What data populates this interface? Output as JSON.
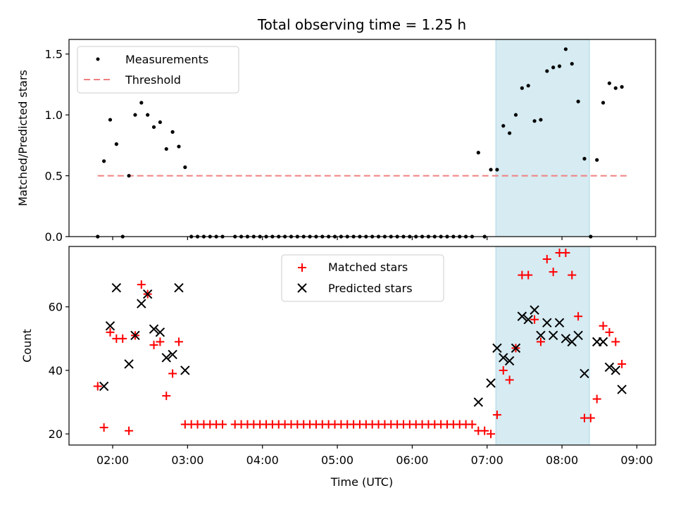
{
  "chart_data": [
    {
      "type": "scatter",
      "title": "Total observing time = 1.25 h",
      "ylabel": "Matched/Predicted stars",
      "xlabel": "",
      "xlim": [
        "01:25",
        "09:15"
      ],
      "ylim": [
        0,
        1.62
      ],
      "yticks": [
        "0.0",
        "0.5",
        "1.0",
        "1.5"
      ],
      "highlight_span": [
        "07:07",
        "08:22"
      ],
      "highlight_color": "#add8e6",
      "threshold": {
        "name": "Threshold",
        "value": 0.5,
        "x": [
          "01:48",
          "08:53"
        ],
        "color": "#f08080"
      },
      "legend": {
        "placement": "upper-left",
        "entries": [
          "Measurements",
          "Threshold"
        ]
      },
      "series": [
        {
          "name": "Measurements",
          "color": "#000000",
          "points": [
            [
              "01:48",
              0.0
            ],
            [
              "01:53",
              0.62
            ],
            [
              "01:58",
              0.96
            ],
            [
              "02:03",
              0.76
            ],
            [
              "02:08",
              0.0
            ],
            [
              "02:13",
              0.5
            ],
            [
              "02:18",
              1.0
            ],
            [
              "02:23",
              1.1
            ],
            [
              "02:28",
              1.0
            ],
            [
              "02:33",
              0.9
            ],
            [
              "02:38",
              0.94
            ],
            [
              "02:43",
              0.72
            ],
            [
              "02:48",
              0.86
            ],
            [
              "02:53",
              0.74
            ],
            [
              "02:58",
              0.57
            ],
            [
              "03:03",
              0.0
            ],
            [
              "03:08",
              0.0
            ],
            [
              "03:13",
              0.0
            ],
            [
              "03:18",
              0.0
            ],
            [
              "03:23",
              0.0
            ],
            [
              "03:28",
              0.0
            ],
            [
              "03:38",
              0.0
            ],
            [
              "03:43",
              0.0
            ],
            [
              "03:48",
              0.0
            ],
            [
              "03:53",
              0.0
            ],
            [
              "03:58",
              0.0
            ],
            [
              "04:03",
              0.0
            ],
            [
              "04:08",
              0.0
            ],
            [
              "04:13",
              0.0
            ],
            [
              "04:18",
              0.0
            ],
            [
              "04:23",
              0.0
            ],
            [
              "04:28",
              0.0
            ],
            [
              "04:33",
              0.0
            ],
            [
              "04:38",
              0.0
            ],
            [
              "04:43",
              0.0
            ],
            [
              "04:48",
              0.0
            ],
            [
              "04:53",
              0.0
            ],
            [
              "04:58",
              0.0
            ],
            [
              "05:03",
              0.0
            ],
            [
              "05:08",
              0.0
            ],
            [
              "05:13",
              0.0
            ],
            [
              "05:18",
              0.0
            ],
            [
              "05:23",
              0.0
            ],
            [
              "05:28",
              0.0
            ],
            [
              "05:33",
              0.0
            ],
            [
              "05:38",
              0.0
            ],
            [
              "05:43",
              0.0
            ],
            [
              "05:48",
              0.0
            ],
            [
              "05:53",
              0.0
            ],
            [
              "05:58",
              0.0
            ],
            [
              "06:03",
              0.0
            ],
            [
              "06:08",
              0.0
            ],
            [
              "06:13",
              0.0
            ],
            [
              "06:18",
              0.0
            ],
            [
              "06:23",
              0.0
            ],
            [
              "06:28",
              0.0
            ],
            [
              "06:33",
              0.0
            ],
            [
              "06:38",
              0.0
            ],
            [
              "06:43",
              0.0
            ],
            [
              "06:48",
              0.0
            ],
            [
              "06:53",
              0.69
            ],
            [
              "06:58",
              0.0
            ],
            [
              "07:03",
              0.55
            ],
            [
              "07:08",
              0.55
            ],
            [
              "07:13",
              0.91
            ],
            [
              "07:18",
              0.85
            ],
            [
              "07:23",
              1.0
            ],
            [
              "07:28",
              1.22
            ],
            [
              "07:33",
              1.24
            ],
            [
              "07:38",
              0.95
            ],
            [
              "07:43",
              0.96
            ],
            [
              "07:48",
              1.36
            ],
            [
              "07:53",
              1.39
            ],
            [
              "07:58",
              1.4
            ],
            [
              "08:03",
              1.54
            ],
            [
              "08:08",
              1.42
            ],
            [
              "08:13",
              1.11
            ],
            [
              "08:18",
              0.64
            ],
            [
              "08:23",
              0.0
            ],
            [
              "08:28",
              0.63
            ],
            [
              "08:33",
              1.1
            ],
            [
              "08:38",
              1.26
            ],
            [
              "08:43",
              1.22
            ],
            [
              "08:48",
              1.23
            ]
          ]
        }
      ]
    },
    {
      "type": "scatter",
      "title": "",
      "ylabel": "Count",
      "xlabel": "Time (UTC)",
      "xlim": [
        "01:25",
        "09:15"
      ],
      "ylim": [
        16.5,
        79
      ],
      "yticks": [
        "20",
        "40",
        "60"
      ],
      "xticks": [
        "02:00",
        "03:00",
        "04:00",
        "05:00",
        "06:00",
        "07:00",
        "08:00",
        "09:00"
      ],
      "highlight_span": [
        "07:07",
        "08:22"
      ],
      "highlight_color": "#add8e6",
      "legend": {
        "placement": "upper-center",
        "entries": [
          "Matched stars",
          "Predicted stars"
        ]
      },
      "series": [
        {
          "name": "Matched stars",
          "marker": "+",
          "color": "#ff0000",
          "points": [
            [
              "01:48",
              35
            ],
            [
              "01:53",
              22
            ],
            [
              "01:58",
              52
            ],
            [
              "02:03",
              50
            ],
            [
              "02:08",
              50
            ],
            [
              "02:13",
              21
            ],
            [
              "02:18",
              51
            ],
            [
              "02:23",
              67
            ],
            [
              "02:28",
              64
            ],
            [
              "02:33",
              48
            ],
            [
              "02:38",
              49
            ],
            [
              "02:43",
              32
            ],
            [
              "02:48",
              39
            ],
            [
              "02:53",
              49
            ],
            [
              "02:58",
              23
            ],
            [
              "03:03",
              23
            ],
            [
              "03:08",
              23
            ],
            [
              "03:13",
              23
            ],
            [
              "03:18",
              23
            ],
            [
              "03:23",
              23
            ],
            [
              "03:28",
              23
            ],
            [
              "03:38",
              23
            ],
            [
              "03:43",
              23
            ],
            [
              "03:48",
              23
            ],
            [
              "03:53",
              23
            ],
            [
              "03:58",
              23
            ],
            [
              "04:03",
              23
            ],
            [
              "04:08",
              23
            ],
            [
              "04:13",
              23
            ],
            [
              "04:18",
              23
            ],
            [
              "04:23",
              23
            ],
            [
              "04:28",
              23
            ],
            [
              "04:33",
              23
            ],
            [
              "04:38",
              23
            ],
            [
              "04:43",
              23
            ],
            [
              "04:48",
              23
            ],
            [
              "04:53",
              23
            ],
            [
              "04:58",
              23
            ],
            [
              "05:03",
              23
            ],
            [
              "05:08",
              23
            ],
            [
              "05:13",
              23
            ],
            [
              "05:18",
              23
            ],
            [
              "05:23",
              23
            ],
            [
              "05:28",
              23
            ],
            [
              "05:33",
              23
            ],
            [
              "05:38",
              23
            ],
            [
              "05:43",
              23
            ],
            [
              "05:48",
              23
            ],
            [
              "05:53",
              23
            ],
            [
              "05:58",
              23
            ],
            [
              "06:03",
              23
            ],
            [
              "06:08",
              23
            ],
            [
              "06:13",
              23
            ],
            [
              "06:18",
              23
            ],
            [
              "06:23",
              23
            ],
            [
              "06:28",
              23
            ],
            [
              "06:33",
              23
            ],
            [
              "06:38",
              23
            ],
            [
              "06:43",
              23
            ],
            [
              "06:48",
              23
            ],
            [
              "06:53",
              21
            ],
            [
              "06:58",
              21
            ],
            [
              "07:03",
              20
            ],
            [
              "07:08",
              26
            ],
            [
              "07:13",
              40
            ],
            [
              "07:18",
              37
            ],
            [
              "07:23",
              47
            ],
            [
              "07:28",
              70
            ],
            [
              "07:33",
              70
            ],
            [
              "07:38",
              56
            ],
            [
              "07:43",
              49
            ],
            [
              "07:48",
              75
            ],
            [
              "07:53",
              71
            ],
            [
              "07:58",
              77
            ],
            [
              "08:03",
              77
            ],
            [
              "08:08",
              70
            ],
            [
              "08:13",
              57
            ],
            [
              "08:18",
              25
            ],
            [
              "08:23",
              25
            ],
            [
              "08:28",
              31
            ],
            [
              "08:33",
              54
            ],
            [
              "08:38",
              52
            ],
            [
              "08:43",
              49
            ],
            [
              "08:48",
              42
            ]
          ]
        },
        {
          "name": "Predicted stars",
          "marker": "x",
          "color": "#000000",
          "points": [
            [
              "01:53",
              35
            ],
            [
              "01:58",
              54
            ],
            [
              "02:03",
              66
            ],
            [
              "02:13",
              42
            ],
            [
              "02:18",
              51
            ],
            [
              "02:23",
              61
            ],
            [
              "02:28",
              64
            ],
            [
              "02:33",
              53
            ],
            [
              "02:38",
              52
            ],
            [
              "02:43",
              44
            ],
            [
              "02:48",
              45
            ],
            [
              "02:53",
              66
            ],
            [
              "02:58",
              40
            ],
            [
              "06:53",
              30
            ],
            [
              "07:03",
              36
            ],
            [
              "07:08",
              47
            ],
            [
              "07:13",
              44
            ],
            [
              "07:18",
              43
            ],
            [
              "07:23",
              47
            ],
            [
              "07:28",
              57
            ],
            [
              "07:33",
              56
            ],
            [
              "07:38",
              59
            ],
            [
              "07:43",
              51
            ],
            [
              "07:48",
              55
            ],
            [
              "07:53",
              51
            ],
            [
              "07:58",
              55
            ],
            [
              "08:03",
              50
            ],
            [
              "08:08",
              49
            ],
            [
              "08:13",
              51
            ],
            [
              "08:18",
              39
            ],
            [
              "08:28",
              49
            ],
            [
              "08:33",
              49
            ],
            [
              "08:38",
              41
            ],
            [
              "08:43",
              40
            ],
            [
              "08:48",
              34
            ]
          ]
        }
      ]
    }
  ]
}
